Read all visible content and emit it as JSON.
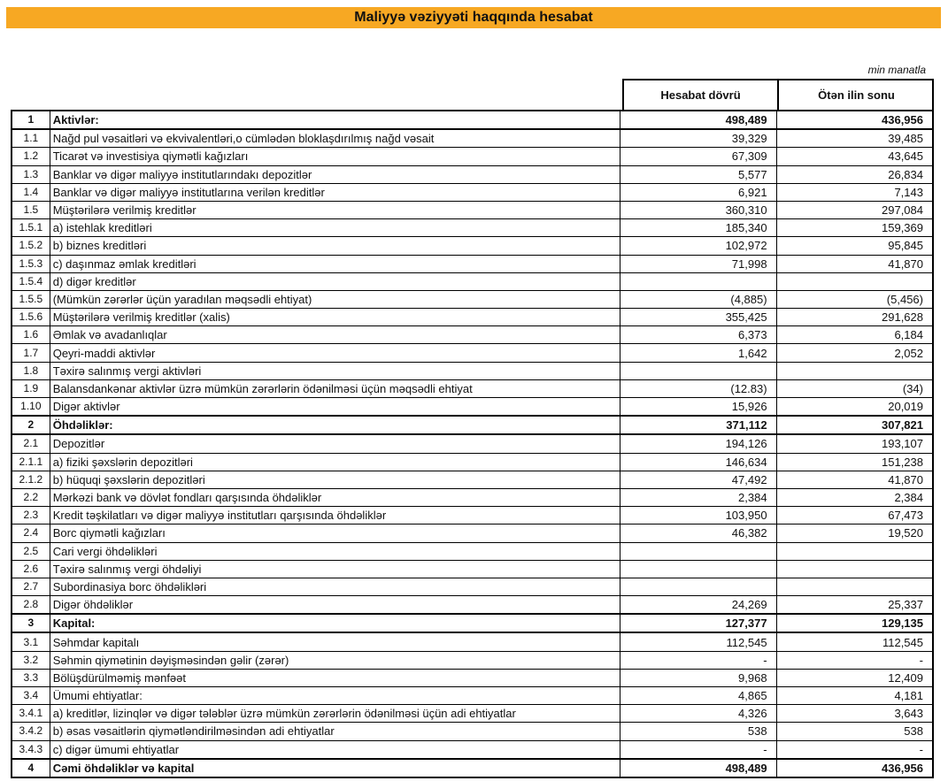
{
  "title": "Maliyyə vəziyyəti haqqında hesabat",
  "unit": "min manatla",
  "columns": [
    "Hesabat dövrü",
    "Ötən ilin sonu"
  ],
  "rows": [
    {
      "n": "1",
      "label": "Aktivlər:",
      "a": "498,489",
      "b": "436,956",
      "bold": true
    },
    {
      "n": "1.1",
      "label": "Nağd pul vəsaitləri və ekvivalentləri,o cümlədən bloklaşdırılmış nağd vəsait",
      "a": "39,329",
      "b": "39,485"
    },
    {
      "n": "1.2",
      "label": "Ticarət və investisiya qiymətli kağızları",
      "a": "67,309",
      "b": "43,645"
    },
    {
      "n": "1.3",
      "label": "Banklar və digər maliyyə institutlarındakı depozitlər",
      "a": "5,577",
      "b": "26,834"
    },
    {
      "n": "1.4",
      "label": "Banklar və digər maliyyə institutlarına verilən kreditlər",
      "a": "6,921",
      "b": "7,143"
    },
    {
      "n": "1.5",
      "label": "Müştərilərə verilmiş kreditlər",
      "a": "360,310",
      "b": "297,084"
    },
    {
      "n": "1.5.1",
      "label": "a) istehlak kreditləri",
      "a": "185,340",
      "b": "159,369"
    },
    {
      "n": "1.5.2",
      "label": "b) biznes kreditləri",
      "a": "102,972",
      "b": "95,845"
    },
    {
      "n": "1.5.3",
      "label": "c) daşınmaz əmlak kreditləri",
      "a": "71,998",
      "b": "41,870"
    },
    {
      "n": "1.5.4",
      "label": "d) digər kreditlər",
      "a": "",
      "b": ""
    },
    {
      "n": "1.5.5",
      "label": "(Mümkün zərərlər üçün yaradılan məqsədli ehtiyat)",
      "a": "(4,885)",
      "b": "(5,456)"
    },
    {
      "n": "1.5.6",
      "label": "Müştərilərə verilmiş kreditlər (xalis)",
      "a": "355,425",
      "b": "291,628"
    },
    {
      "n": "1.6",
      "label": "Əmlak və avadanlıqlar",
      "a": "6,373",
      "b": "6,184"
    },
    {
      "n": "1.7",
      "label": "Qeyri-maddi aktivlər",
      "a": "1,642",
      "b": "2,052"
    },
    {
      "n": "1.8",
      "label": "Təxirə salınmış vergi aktivləri",
      "a": "",
      "b": ""
    },
    {
      "n": "1.9",
      "label": "Balansdankənar aktivlər üzrə mümkün zərərlərin ödənilməsi üçün məqsədli ehtiyat",
      "a": "(12.83)",
      "b": "(34)"
    },
    {
      "n": "1.10",
      "label": "Digər aktivlər",
      "a": "15,926",
      "b": "20,019"
    },
    {
      "n": "2",
      "label": "Öhdəliklər:",
      "a": "371,112",
      "b": "307,821",
      "bold": true
    },
    {
      "n": "2.1",
      "label": "Depozitlər",
      "a": "194,126",
      "b": "193,107"
    },
    {
      "n": "2.1.1",
      "label": "a) fiziki şəxslərin depozitləri",
      "a": "146,634",
      "b": "151,238"
    },
    {
      "n": "2.1.2",
      "label": "b) hüquqi şəxslərin depozitləri",
      "a": "47,492",
      "b": "41,870"
    },
    {
      "n": "2.2",
      "label": "Mərkəzi bank və dövlət fondları qarşısında öhdəliklər",
      "a": "2,384",
      "b": "2,384"
    },
    {
      "n": "2.3",
      "label": "Kredit təşkilatları və digər maliyyə institutları qarşısında öhdəliklər",
      "a": "103,950",
      "b": "67,473"
    },
    {
      "n": "2.4",
      "label": "Borc qiymətli kağızları",
      "a": "46,382",
      "b": "19,520"
    },
    {
      "n": "2.5",
      "label": "Cari vergi öhdəlikləri",
      "a": "",
      "b": ""
    },
    {
      "n": "2.6",
      "label": "Təxirə salınmış vergi öhdəliyi",
      "a": "",
      "b": ""
    },
    {
      "n": "2.7",
      "label": "Subordinasiya borc öhdəlikləri",
      "a": "",
      "b": ""
    },
    {
      "n": "2.8",
      "label": "Digər öhdəliklər",
      "a": "24,269",
      "b": "25,337"
    },
    {
      "n": "3",
      "label": "Kapital:",
      "a": "127,377",
      "b": "129,135",
      "bold": true
    },
    {
      "n": "3.1",
      "label": "Səhmdar kapitalı",
      "a": "112,545",
      "b": "112,545"
    },
    {
      "n": "3.2",
      "label": "Səhmin qiymətinin dəyişməsindən gəlir (zərər)",
      "a": "-",
      "b": "-"
    },
    {
      "n": "3.3",
      "label": "Bölüşdürülməmiş mənfəət",
      "a": "9,968",
      "b": "12,409"
    },
    {
      "n": "3.4",
      "label": "Ümumi ehtiyatlar:",
      "a": "4,865",
      "b": "4,181"
    },
    {
      "n": "3.4.1",
      "label": "a)  kreditlər, lizinqlər və digər tələblər üzrə mümkün zərərlərin ödənilməsi üçün adi ehtiyatlar",
      "a": "4,326",
      "b": "3,643"
    },
    {
      "n": "3.4.2",
      "label": "b) əsas vəsaitlərin qiymətləndirilməsindən adi ehtiyatlar",
      "a": "538",
      "b": "538"
    },
    {
      "n": "3.4.3",
      "label": "c) digər ümumi ehtiyatlar",
      "a": "-",
      "b": "-"
    },
    {
      "n": "4",
      "label": "Cəmi öhdəliklər və kapital",
      "a": "498,489",
      "b": "436,956",
      "bold": true
    }
  ]
}
